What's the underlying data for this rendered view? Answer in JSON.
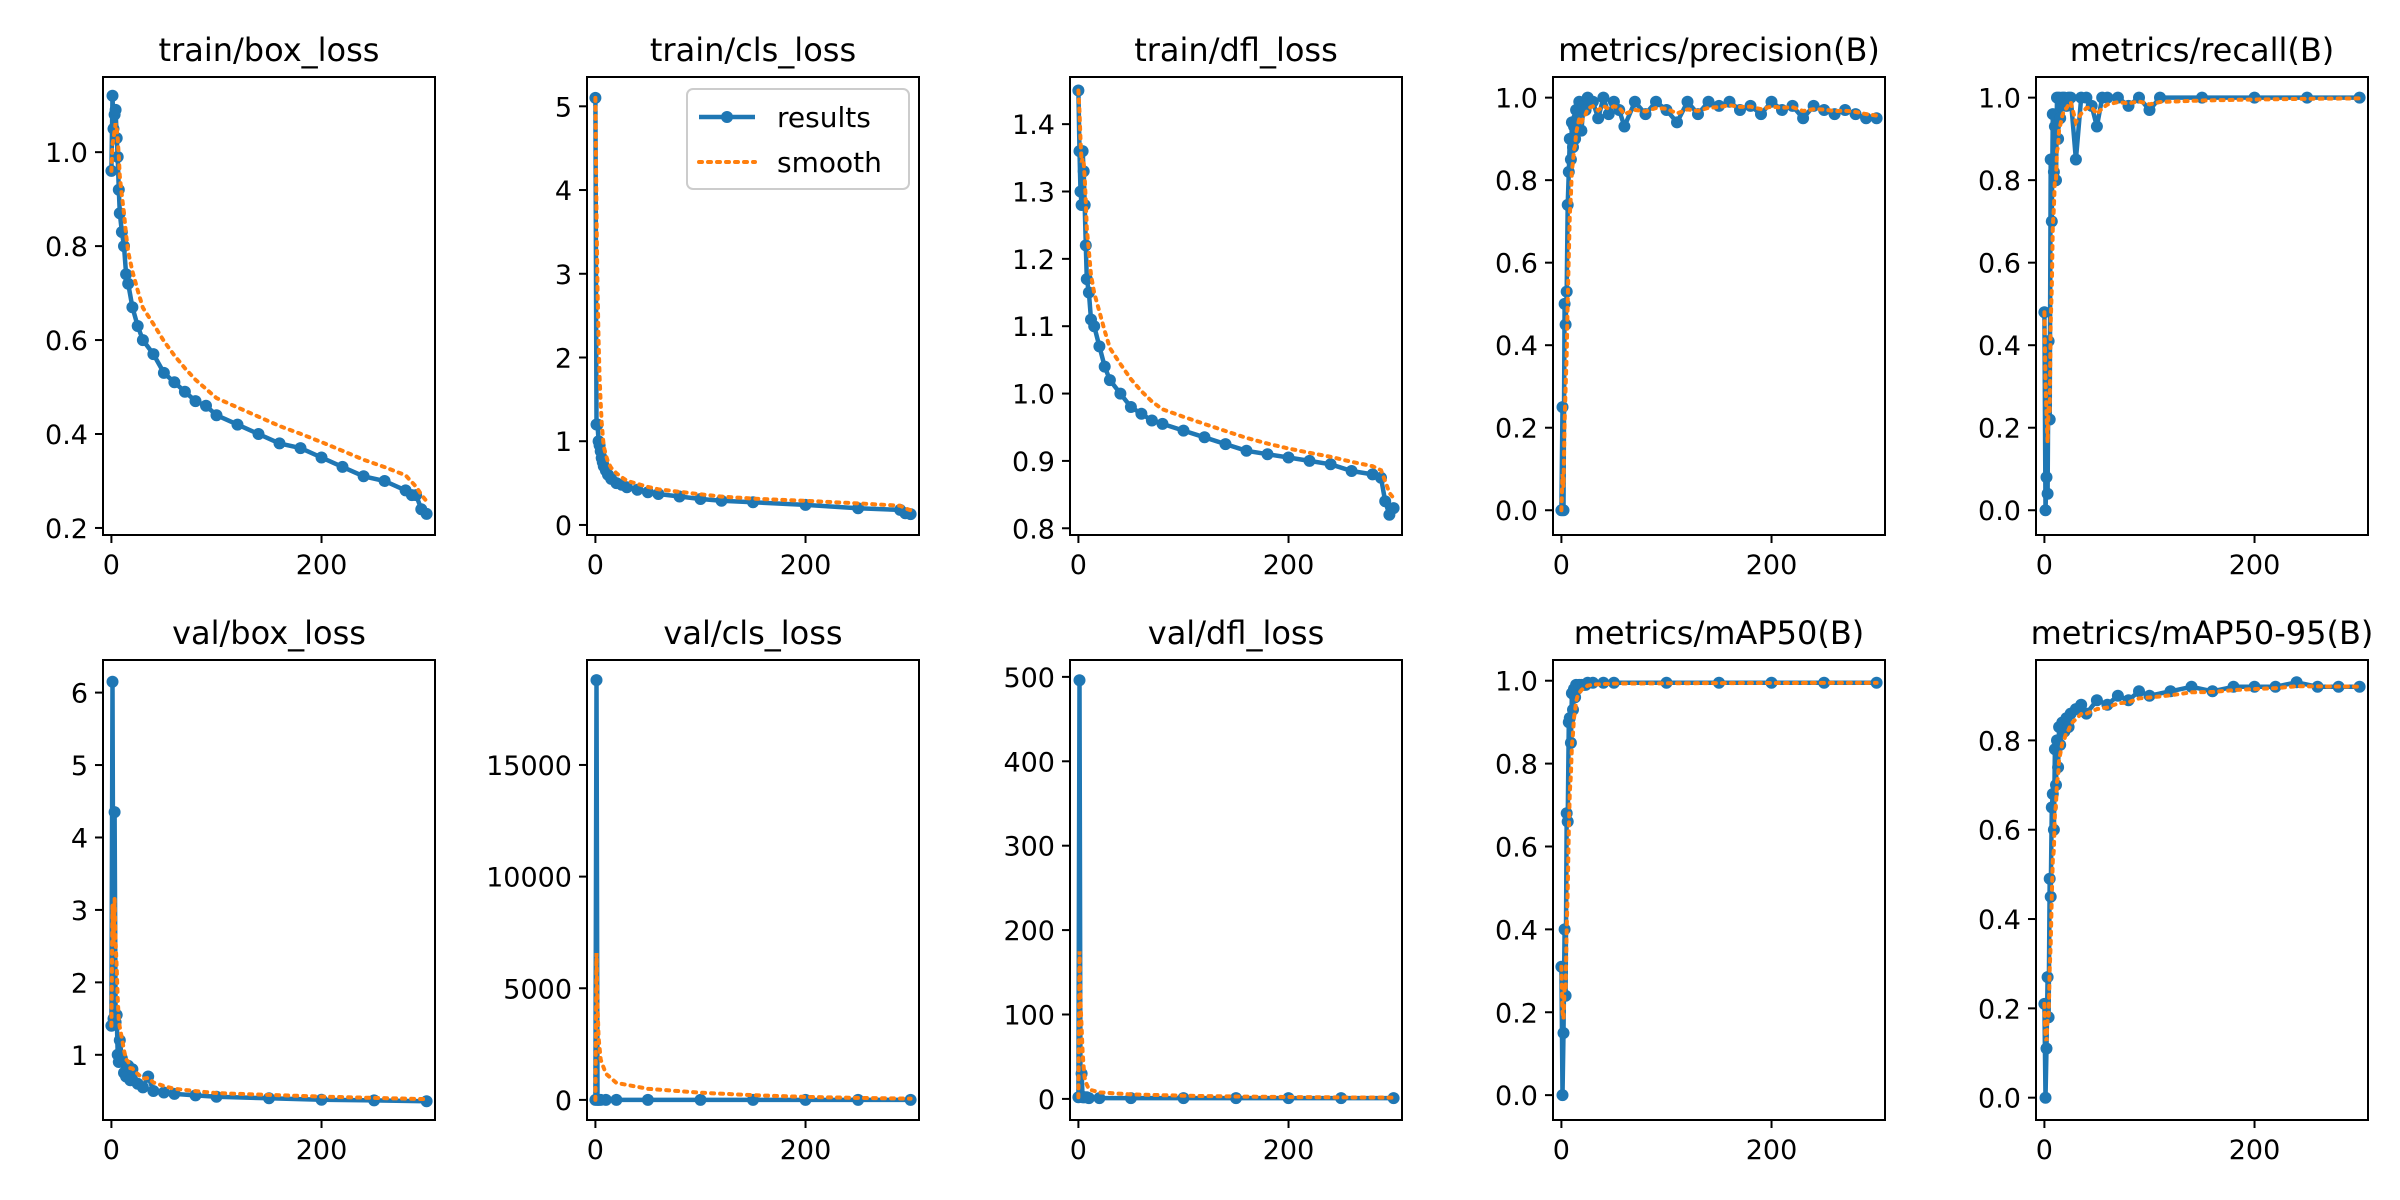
{
  "figure_colors": {
    "results": "#1f77b4",
    "smooth": "#ff7f0e"
  },
  "legend": {
    "results_label": "results",
    "smooth_label": "smooth",
    "placement": "top-right of train/cls_loss"
  },
  "chart_data": [
    {
      "type": "line",
      "title": "train/box_loss",
      "xlim": [
        -8,
        308
      ],
      "ylim": [
        0.185,
        1.16
      ],
      "xticks": [
        0,
        200
      ],
      "xtick_labels": [
        "0",
        "200"
      ],
      "yticks": [
        0.2,
        0.4,
        0.6,
        0.8,
        1.0
      ],
      "ytick_labels": [
        "0.2",
        "0.4",
        "0.6",
        "0.8",
        "1.0"
      ],
      "series": [
        {
          "name": "results",
          "x": [
            0,
            1,
            2,
            3,
            4,
            5,
            6,
            7,
            8,
            10,
            12,
            14,
            16,
            20,
            25,
            30,
            40,
            50,
            60,
            70,
            80,
            90,
            100,
            120,
            140,
            160,
            180,
            200,
            220,
            240,
            260,
            280,
            286,
            290,
            295,
            300
          ],
          "y": [
            0.96,
            1.12,
            1.05,
            1.08,
            1.09,
            1.03,
            0.99,
            0.92,
            0.87,
            0.83,
            0.8,
            0.74,
            0.72,
            0.67,
            0.63,
            0.6,
            0.57,
            0.53,
            0.51,
            0.49,
            0.47,
            0.46,
            0.44,
            0.42,
            0.4,
            0.38,
            0.37,
            0.35,
            0.33,
            0.31,
            0.3,
            0.28,
            0.27,
            0.27,
            0.24,
            0.23
          ]
        }
      ]
    },
    {
      "type": "line",
      "title": "train/cls_loss",
      "xlim": [
        -8,
        308
      ],
      "ylim": [
        -0.12,
        5.35
      ],
      "xticks": [
        0,
        200
      ],
      "xtick_labels": [
        "0",
        "200"
      ],
      "yticks": [
        0,
        1,
        2,
        3,
        4,
        5
      ],
      "ytick_labels": [
        "0",
        "1",
        "2",
        "3",
        "4",
        "5"
      ],
      "legend": true,
      "series": [
        {
          "name": "results",
          "x": [
            0,
            1,
            2,
            3,
            4,
            5,
            6,
            7,
            8,
            10,
            12,
            15,
            20,
            25,
            30,
            40,
            50,
            60,
            80,
            100,
            120,
            150,
            200,
            250,
            290,
            295,
            300
          ],
          "y": [
            5.1,
            1.2,
            1.2,
            1.0,
            0.95,
            0.88,
            0.8,
            0.75,
            0.7,
            0.65,
            0.6,
            0.55,
            0.5,
            0.48,
            0.45,
            0.42,
            0.39,
            0.37,
            0.34,
            0.31,
            0.29,
            0.27,
            0.24,
            0.2,
            0.18,
            0.14,
            0.13
          ]
        }
      ]
    },
    {
      "type": "line",
      "title": "train/dfl_loss",
      "xlim": [
        -8,
        308
      ],
      "ylim": [
        0.79,
        1.47
      ],
      "xticks": [
        0,
        200
      ],
      "xtick_labels": [
        "0",
        "200"
      ],
      "yticks": [
        0.8,
        0.9,
        1.0,
        1.1,
        1.2,
        1.3,
        1.4
      ],
      "ytick_labels": [
        "0.8",
        "0.9",
        "1.0",
        "1.1",
        "1.2",
        "1.3",
        "1.4"
      ],
      "series": [
        {
          "name": "results",
          "x": [
            0,
            1,
            2,
            3,
            4,
            5,
            6,
            7,
            8,
            10,
            12,
            15,
            20,
            25,
            30,
            40,
            50,
            60,
            70,
            80,
            100,
            120,
            140,
            160,
            180,
            200,
            220,
            240,
            260,
            280,
            288,
            292,
            296,
            300
          ],
          "y": [
            1.45,
            1.36,
            1.3,
            1.28,
            1.36,
            1.33,
            1.28,
            1.22,
            1.17,
            1.15,
            1.11,
            1.1,
            1.07,
            1.04,
            1.02,
            1.0,
            0.98,
            0.97,
            0.96,
            0.955,
            0.945,
            0.935,
            0.925,
            0.915,
            0.91,
            0.905,
            0.9,
            0.895,
            0.885,
            0.88,
            0.875,
            0.84,
            0.82,
            0.83
          ]
        }
      ]
    },
    {
      "type": "line",
      "title": "metrics/precision(B)",
      "xlim": [
        -8,
        308
      ],
      "ylim": [
        -0.06,
        1.05
      ],
      "xticks": [
        0,
        200
      ],
      "xtick_labels": [
        "0",
        "200"
      ],
      "yticks": [
        0,
        0.2,
        0.4,
        0.6,
        0.8,
        1.0
      ],
      "ytick_labels": [
        "0.0",
        "0.2",
        "0.4",
        "0.6",
        "0.8",
        "1.0"
      ],
      "series": [
        {
          "name": "results",
          "x": [
            0,
            1,
            2,
            3,
            4,
            5,
            6,
            7,
            8,
            9,
            10,
            11,
            12,
            13,
            14,
            15,
            17,
            19,
            21,
            23,
            25,
            30,
            35,
            40,
            45,
            50,
            55,
            60,
            70,
            80,
            90,
            100,
            110,
            120,
            130,
            140,
            150,
            160,
            170,
            180,
            190,
            200,
            210,
            220,
            230,
            240,
            250,
            260,
            270,
            280,
            290,
            300
          ],
          "y": [
            0.0,
            0.25,
            0.0,
            0.5,
            0.45,
            0.53,
            0.74,
            0.82,
            0.9,
            0.85,
            0.94,
            0.88,
            0.93,
            0.9,
            0.97,
            0.95,
            0.99,
            0.92,
            0.98,
            0.97,
            1.0,
            0.99,
            0.95,
            1.0,
            0.96,
            0.99,
            0.97,
            0.93,
            0.99,
            0.96,
            0.99,
            0.97,
            0.94,
            0.99,
            0.96,
            0.99,
            0.98,
            0.99,
            0.97,
            0.98,
            0.96,
            0.99,
            0.97,
            0.98,
            0.95,
            0.98,
            0.97,
            0.96,
            0.97,
            0.96,
            0.95,
            0.95
          ]
        }
      ]
    },
    {
      "type": "line",
      "title": "metrics/recall(B)",
      "xlim": [
        -8,
        308
      ],
      "ylim": [
        -0.06,
        1.05
      ],
      "xticks": [
        0,
        200
      ],
      "xtick_labels": [
        "0",
        "200"
      ],
      "yticks": [
        0,
        0.2,
        0.4,
        0.6,
        0.8,
        1.0
      ],
      "ytick_labels": [
        "0.0",
        "0.2",
        "0.4",
        "0.6",
        "0.8",
        "1.0"
      ],
      "series": [
        {
          "name": "results",
          "x": [
            0,
            1,
            2,
            3,
            4,
            5,
            6,
            7,
            8,
            9,
            10,
            11,
            12,
            13,
            14,
            15,
            17,
            19,
            21,
            23,
            25,
            30,
            35,
            40,
            45,
            50,
            55,
            60,
            70,
            80,
            90,
            100,
            110,
            150,
            200,
            250,
            300
          ],
          "y": [
            0.48,
            0.0,
            0.08,
            0.04,
            0.41,
            0.22,
            0.85,
            0.7,
            0.96,
            0.82,
            0.93,
            0.8,
            1.0,
            0.9,
            1.0,
            0.95,
            1.0,
            1.0,
            0.98,
            1.0,
            1.0,
            0.85,
            1.0,
            1.0,
            0.98,
            0.93,
            1.0,
            1.0,
            1.0,
            0.98,
            1.0,
            0.97,
            1.0,
            1.0,
            1.0,
            1.0,
            1.0
          ]
        }
      ]
    },
    {
      "type": "line",
      "title": "val/box_loss",
      "xlim": [
        -8,
        308
      ],
      "ylim": [
        0.1,
        6.45
      ],
      "xticks": [
        0,
        200
      ],
      "xtick_labels": [
        "0",
        "200"
      ],
      "yticks": [
        1,
        2,
        3,
        4,
        5,
        6
      ],
      "ytick_labels": [
        "1",
        "2",
        "3",
        "4",
        "5",
        "6"
      ],
      "series": [
        {
          "name": "results",
          "x": [
            0,
            1,
            2,
            3,
            4,
            5,
            6,
            7,
            8,
            10,
            12,
            14,
            16,
            18,
            20,
            25,
            30,
            35,
            40,
            50,
            60,
            80,
            100,
            150,
            200,
            250,
            300
          ],
          "y": [
            1.4,
            6.15,
            1.5,
            4.35,
            1.45,
            1.55,
            1.0,
            0.9,
            1.2,
            0.95,
            0.75,
            0.7,
            0.85,
            0.65,
            0.8,
            0.6,
            0.55,
            0.7,
            0.5,
            0.48,
            0.46,
            0.44,
            0.42,
            0.4,
            0.38,
            0.37,
            0.36
          ]
        }
      ]
    },
    {
      "type": "line",
      "title": "val/cls_loss",
      "xlim": [
        -8,
        308
      ],
      "ylim": [
        -900,
        19700
      ],
      "xticks": [
        0,
        200
      ],
      "xtick_labels": [
        "0",
        "200"
      ],
      "yticks": [
        0,
        5000,
        10000,
        15000
      ],
      "ytick_labels": [
        "0",
        "5000",
        "10000",
        "15000"
      ],
      "series": [
        {
          "name": "results",
          "x": [
            0,
            1,
            2,
            3,
            5,
            10,
            20,
            50,
            100,
            150,
            200,
            250,
            300
          ],
          "y": [
            0,
            18800,
            0,
            0,
            0,
            0,
            0,
            0,
            0,
            0,
            0,
            0,
            0
          ]
        }
      ]
    },
    {
      "type": "line",
      "title": "val/dfl_loss",
      "xlim": [
        -8,
        308
      ],
      "ylim": [
        -25,
        520
      ],
      "xticks": [
        0,
        200
      ],
      "xtick_labels": [
        "0",
        "200"
      ],
      "yticks": [
        0,
        100,
        200,
        300,
        400,
        500
      ],
      "ytick_labels": [
        "0",
        "100",
        "200",
        "300",
        "400",
        "500"
      ],
      "series": [
        {
          "name": "results",
          "x": [
            0,
            1,
            2,
            3,
            4,
            5,
            6,
            8,
            10,
            20,
            50,
            100,
            150,
            200,
            250,
            300
          ],
          "y": [
            2,
            496,
            3,
            30,
            2,
            2,
            2,
            2,
            1,
            1,
            1,
            1,
            1,
            1,
            1,
            1
          ]
        }
      ]
    },
    {
      "type": "line",
      "title": "metrics/mAP50(B)",
      "xlim": [
        -8,
        308
      ],
      "ylim": [
        -0.06,
        1.05
      ],
      "xticks": [
        0,
        200
      ],
      "xtick_labels": [
        "0",
        "200"
      ],
      "yticks": [
        0,
        0.2,
        0.4,
        0.6,
        0.8,
        1.0
      ],
      "ytick_labels": [
        "0.0",
        "0.2",
        "0.4",
        "0.6",
        "0.8",
        "1.0"
      ],
      "series": [
        {
          "name": "results",
          "x": [
            0,
            1,
            2,
            3,
            4,
            5,
            6,
            7,
            8,
            9,
            10,
            11,
            12,
            13,
            14,
            15,
            17,
            19,
            21,
            23,
            25,
            30,
            40,
            50,
            100,
            150,
            200,
            250,
            300
          ],
          "y": [
            0.31,
            0.0,
            0.15,
            0.4,
            0.24,
            0.68,
            0.66,
            0.9,
            0.91,
            0.85,
            0.97,
            0.93,
            0.98,
            0.96,
            0.99,
            0.98,
            0.99,
            0.99,
            0.99,
            0.99,
            0.995,
            0.995,
            0.995,
            0.995,
            0.995,
            0.995,
            0.995,
            0.995,
            0.995
          ]
        }
      ]
    },
    {
      "type": "line",
      "title": "metrics/mAP50-95(B)",
      "xlim": [
        -8,
        308
      ],
      "ylim": [
        -0.05,
        0.98
      ],
      "xticks": [
        0,
        200
      ],
      "xtick_labels": [
        "0",
        "200"
      ],
      "yticks": [
        0,
        0.2,
        0.4,
        0.6,
        0.8
      ],
      "ytick_labels": [
        "0.0",
        "0.2",
        "0.4",
        "0.6",
        "0.8"
      ],
      "series": [
        {
          "name": "results",
          "x": [
            0,
            1,
            2,
            3,
            4,
            5,
            6,
            7,
            8,
            9,
            10,
            11,
            12,
            13,
            14,
            15,
            17,
            19,
            21,
            23,
            25,
            30,
            35,
            40,
            50,
            60,
            70,
            80,
            90,
            100,
            120,
            140,
            160,
            180,
            200,
            220,
            240,
            260,
            280,
            300
          ],
          "y": [
            0.21,
            0.0,
            0.11,
            0.27,
            0.18,
            0.49,
            0.45,
            0.65,
            0.68,
            0.6,
            0.78,
            0.7,
            0.8,
            0.74,
            0.83,
            0.79,
            0.84,
            0.82,
            0.85,
            0.83,
            0.86,
            0.87,
            0.88,
            0.86,
            0.89,
            0.88,
            0.9,
            0.89,
            0.91,
            0.9,
            0.91,
            0.92,
            0.91,
            0.92,
            0.92,
            0.92,
            0.93,
            0.92,
            0.92,
            0.92
          ]
        }
      ]
    }
  ]
}
